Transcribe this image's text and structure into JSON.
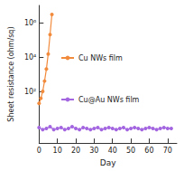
{
  "chart_data": {
    "type": "line",
    "x_label": "Day",
    "y_label": "Sheet resistance (ohm/sq)",
    "log": "y",
    "grid": false,
    "legend": "center",
    "xlim": [
      0,
      75
    ],
    "xticks": [
      0,
      10,
      20,
      30,
      40,
      50,
      60,
      70
    ],
    "ylim": [
      0.1,
      10000000
    ],
    "yticks": [
      {
        "value": 100,
        "label": "10²"
      },
      {
        "value": 10000,
        "label": "10⁴"
      },
      {
        "value": 1000000,
        "label": "10⁶"
      }
    ],
    "series": [
      {
        "name": "Cu NWs film",
        "color": "#f28a3c",
        "marker": "circle",
        "line_style": "solid",
        "x": [
          0,
          1,
          2,
          3,
          4,
          5,
          6,
          7
        ],
        "values": [
          20,
          40,
          100,
          400,
          2000,
          15000,
          200000,
          3000000
        ]
      },
      {
        "name": "Cu@Au NWs film",
        "color": "#a366e0",
        "marker": "circle",
        "line_style": "solid",
        "x": [
          0,
          2,
          4,
          6,
          8,
          10,
          12,
          14,
          16,
          18,
          20,
          22,
          24,
          26,
          28,
          30,
          32,
          34,
          36,
          38,
          40,
          42,
          44,
          46,
          48,
          50,
          52,
          54,
          56,
          58,
          60,
          62,
          64,
          66,
          68,
          70,
          72
        ],
        "values": [
          0.8,
          0.6,
          0.7,
          0.9,
          0.6,
          0.7,
          0.8,
          0.6,
          0.7,
          0.9,
          0.7,
          0.6,
          0.8,
          0.7,
          0.6,
          0.7,
          0.8,
          0.6,
          0.7,
          0.8,
          0.7,
          0.6,
          0.7,
          0.8,
          0.6,
          0.7,
          0.8,
          0.7,
          0.6,
          0.7,
          0.8,
          0.7,
          0.6,
          0.7,
          0.8,
          0.7,
          0.7
        ]
      }
    ]
  }
}
